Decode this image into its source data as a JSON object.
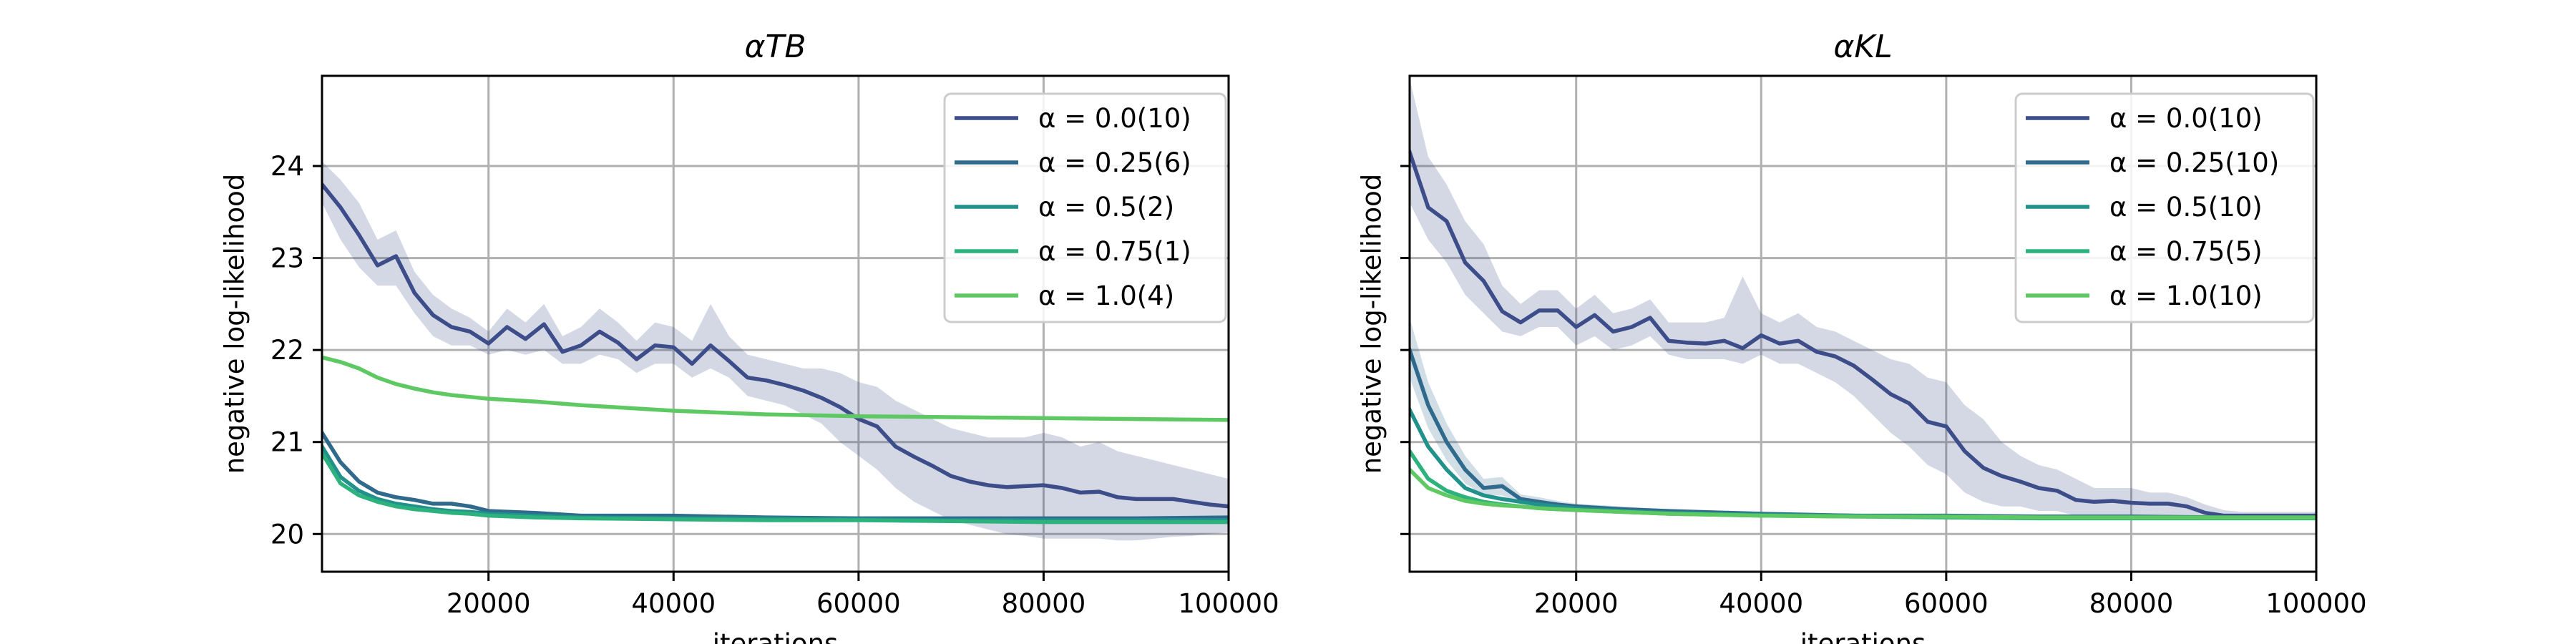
{
  "chart_data": [
    {
      "type": "line",
      "title": "αTB",
      "xlabel": "iterations",
      "ylabel": "negative log-likelihood",
      "xlim": [
        2000,
        100000
      ],
      "ylim": [
        19.59,
        24.98
      ],
      "xticks": [
        20000,
        40000,
        60000,
        80000,
        100000
      ],
      "yticks": [
        20,
        21,
        22,
        23,
        24
      ],
      "ytick_labels_visible": true,
      "grid": true,
      "legend": "upper right",
      "series": [
        {
          "name": "α = 0.0(10)",
          "color": "#3d4d8a",
          "x": [
            2000,
            4000,
            6000,
            8000,
            10000,
            12000,
            14000,
            16000,
            18000,
            20000,
            22000,
            24000,
            26000,
            28000,
            30000,
            32000,
            34000,
            36000,
            38000,
            40000,
            42000,
            44000,
            46000,
            48000,
            50000,
            52000,
            54000,
            56000,
            58000,
            60000,
            62000,
            64000,
            66000,
            68000,
            70000,
            72000,
            74000,
            76000,
            78000,
            80000,
            82000,
            84000,
            86000,
            88000,
            90000,
            92000,
            94000,
            96000,
            98000,
            100000
          ],
          "y": [
            23.8,
            23.55,
            23.25,
            22.92,
            23.02,
            22.62,
            22.38,
            22.25,
            22.2,
            22.07,
            22.25,
            22.12,
            22.28,
            21.98,
            22.05,
            22.2,
            22.08,
            21.9,
            22.05,
            22.03,
            21.85,
            22.05,
            21.88,
            21.7,
            21.67,
            21.62,
            21.56,
            21.48,
            21.38,
            21.25,
            21.17,
            20.95,
            20.84,
            20.74,
            20.63,
            20.57,
            20.53,
            20.51,
            20.52,
            20.53,
            20.5,
            20.45,
            20.46,
            20.4,
            20.38,
            20.38,
            20.38,
            20.35,
            20.32,
            20.3
          ],
          "band": {
            "lower": [
              23.6,
              23.2,
              22.9,
              22.7,
              22.7,
              22.4,
              22.15,
              22.05,
              22.05,
              21.95,
              22.0,
              21.95,
              22.0,
              21.85,
              21.85,
              21.95,
              21.9,
              21.75,
              21.85,
              21.85,
              21.7,
              21.8,
              21.7,
              21.5,
              21.45,
              21.4,
              21.3,
              21.2,
              21.0,
              20.85,
              20.7,
              20.5,
              20.35,
              20.25,
              20.15,
              20.1,
              20.05,
              20.0,
              19.98,
              19.95,
              19.95,
              19.95,
              19.95,
              19.93,
              19.93,
              19.95,
              19.97,
              19.98,
              20.0,
              20.02
            ],
            "upper": [
              24.05,
              23.85,
              23.6,
              23.2,
              23.3,
              22.85,
              22.6,
              22.45,
              22.35,
              22.2,
              22.45,
              22.3,
              22.5,
              22.15,
              22.25,
              22.45,
              22.3,
              22.1,
              22.3,
              22.25,
              22.1,
              22.5,
              22.15,
              21.95,
              21.9,
              21.85,
              21.8,
              21.8,
              21.75,
              21.65,
              21.6,
              21.45,
              21.35,
              21.25,
              21.15,
              21.1,
              21.05,
              21.05,
              21.05,
              21.1,
              21.05,
              20.95,
              21.0,
              20.9,
              20.85,
              20.8,
              20.75,
              20.7,
              20.65,
              20.6
            ]
          }
        },
        {
          "name": "α = 0.25(6)",
          "color": "#2f6a8d",
          "x": [
            2000,
            4000,
            6000,
            8000,
            10000,
            12000,
            14000,
            16000,
            18000,
            20000,
            25000,
            30000,
            40000,
            50000,
            60000,
            70000,
            80000,
            90000,
            100000
          ],
          "y": [
            21.1,
            20.78,
            20.57,
            20.45,
            20.4,
            20.37,
            20.33,
            20.33,
            20.3,
            20.25,
            20.23,
            20.2,
            20.2,
            20.18,
            20.17,
            20.17,
            20.17,
            20.17,
            20.18
          ]
        },
        {
          "name": "α = 0.5(2)",
          "color": "#21918c",
          "x": [
            2000,
            4000,
            6000,
            8000,
            10000,
            12000,
            14000,
            16000,
            18000,
            20000,
            25000,
            30000,
            40000,
            50000,
            60000,
            70000,
            80000,
            90000,
            100000
          ],
          "y": [
            20.95,
            20.62,
            20.47,
            20.38,
            20.33,
            20.3,
            20.27,
            20.25,
            20.24,
            20.22,
            20.2,
            20.18,
            20.17,
            20.17,
            20.16,
            20.15,
            20.15,
            20.15,
            20.15
          ]
        },
        {
          "name": "α = 0.75(1)",
          "color": "#2db27d",
          "x": [
            2000,
            4000,
            6000,
            8000,
            10000,
            12000,
            14000,
            16000,
            18000,
            20000,
            25000,
            30000,
            40000,
            50000,
            60000,
            70000,
            80000,
            90000,
            100000
          ],
          "y": [
            20.88,
            20.55,
            20.42,
            20.35,
            20.3,
            20.27,
            20.25,
            20.23,
            20.22,
            20.2,
            20.18,
            20.17,
            20.16,
            20.15,
            20.15,
            20.14,
            20.13,
            20.13,
            20.13
          ]
        },
        {
          "name": "α = 1.0(4)",
          "color": "#5ec962",
          "x": [
            2000,
            4000,
            6000,
            8000,
            10000,
            12000,
            14000,
            16000,
            18000,
            20000,
            25000,
            30000,
            35000,
            40000,
            45000,
            50000,
            55000,
            60000,
            70000,
            80000,
            90000,
            100000
          ],
          "y": [
            21.92,
            21.87,
            21.8,
            21.7,
            21.63,
            21.58,
            21.54,
            21.51,
            21.49,
            21.47,
            21.44,
            21.4,
            21.37,
            21.34,
            21.32,
            21.3,
            21.29,
            21.28,
            21.27,
            21.26,
            21.25,
            21.24
          ]
        }
      ]
    },
    {
      "type": "line",
      "title": "αKL",
      "xlabel": "iterations",
      "ylabel": "negative log-likelihood",
      "xlim": [
        2000,
        100000
      ],
      "ylim": [
        19.59,
        24.98
      ],
      "xticks": [
        20000,
        40000,
        60000,
        80000,
        100000
      ],
      "yticks": [
        20,
        21,
        22,
        23,
        24
      ],
      "ytick_labels_visible": false,
      "grid": true,
      "legend": "upper right",
      "series": [
        {
          "name": "α = 0.0(10)",
          "color": "#3d4d8a",
          "x": [
            2000,
            4000,
            6000,
            8000,
            10000,
            12000,
            14000,
            16000,
            18000,
            20000,
            22000,
            24000,
            26000,
            28000,
            30000,
            32000,
            34000,
            36000,
            38000,
            40000,
            42000,
            44000,
            46000,
            48000,
            50000,
            52000,
            54000,
            56000,
            58000,
            60000,
            62000,
            64000,
            66000,
            68000,
            70000,
            72000,
            74000,
            76000,
            78000,
            80000,
            82000,
            84000,
            86000,
            88000,
            90000,
            92000,
            94000,
            96000,
            98000,
            100000
          ],
          "y": [
            24.15,
            23.55,
            23.4,
            22.95,
            22.75,
            22.42,
            22.3,
            22.43,
            22.43,
            22.25,
            22.38,
            22.2,
            22.25,
            22.35,
            22.1,
            22.08,
            22.07,
            22.1,
            22.02,
            22.16,
            22.07,
            22.1,
            21.98,
            21.93,
            21.83,
            21.68,
            21.52,
            21.42,
            21.22,
            21.17,
            20.9,
            20.72,
            20.63,
            20.57,
            20.5,
            20.47,
            20.37,
            20.35,
            20.36,
            20.34,
            20.33,
            20.33,
            20.3,
            20.23,
            20.2,
            20.2,
            20.2,
            20.2,
            20.2,
            20.2
          ],
          "band": {
            "lower": [
              23.6,
              23.2,
              22.95,
              22.6,
              22.4,
              22.2,
              22.15,
              22.25,
              22.25,
              22.05,
              22.15,
              22.0,
              22.05,
              22.15,
              21.95,
              21.9,
              21.9,
              21.9,
              21.85,
              21.95,
              21.85,
              21.85,
              21.75,
              21.65,
              21.5,
              21.3,
              21.1,
              20.95,
              20.75,
              20.65,
              20.45,
              20.35,
              20.3,
              20.3,
              20.25,
              20.25,
              20.2,
              20.2,
              20.2,
              20.2,
              20.2,
              20.2,
              20.18,
              20.15,
              20.15,
              20.15,
              20.15,
              20.15,
              20.15,
              20.15
            ],
            "upper": [
              24.95,
              24.1,
              23.8,
              23.4,
              23.15,
              22.7,
              22.5,
              22.65,
              22.65,
              22.45,
              22.6,
              22.4,
              22.45,
              22.55,
              22.3,
              22.3,
              22.3,
              22.35,
              22.8,
              22.4,
              22.3,
              22.4,
              22.25,
              22.2,
              22.1,
              22.0,
              21.9,
              21.85,
              21.7,
              21.65,
              21.4,
              21.25,
              21.0,
              20.85,
              20.75,
              20.7,
              20.6,
              20.5,
              20.5,
              20.5,
              20.45,
              20.45,
              20.4,
              20.32,
              20.26,
              20.24,
              20.24,
              20.24,
              20.24,
              20.24
            ]
          }
        },
        {
          "name": "α = 0.25(10)",
          "color": "#2f6a8d",
          "x": [
            2000,
            4000,
            6000,
            8000,
            10000,
            12000,
            14000,
            16000,
            18000,
            20000,
            25000,
            30000,
            40000,
            50000,
            60000,
            70000,
            80000,
            90000,
            100000
          ],
          "y": [
            22.0,
            21.4,
            21.0,
            20.7,
            20.5,
            20.52,
            20.38,
            20.35,
            20.32,
            20.3,
            20.27,
            20.25,
            20.22,
            20.2,
            20.2,
            20.19,
            20.19,
            20.18,
            20.18
          ],
          "band": {
            "lower": [
              21.7,
              21.15,
              20.8,
              20.55,
              20.42,
              20.42,
              20.33,
              20.3,
              20.29,
              20.27,
              20.25,
              20.23,
              20.2,
              20.19,
              20.18,
              20.18,
              20.17,
              20.17,
              20.17
            ],
            "upper": [
              22.35,
              21.65,
              21.2,
              20.85,
              20.6,
              20.62,
              20.43,
              20.4,
              20.36,
              20.33,
              20.3,
              20.27,
              20.24,
              20.22,
              20.22,
              20.21,
              20.21,
              20.2,
              20.2
            ]
          }
        },
        {
          "name": "α = 0.5(10)",
          "color": "#21918c",
          "x": [
            2000,
            4000,
            6000,
            8000,
            10000,
            12000,
            14000,
            16000,
            18000,
            20000,
            25000,
            30000,
            40000,
            50000,
            60000,
            70000,
            80000,
            90000,
            100000
          ],
          "y": [
            21.35,
            20.95,
            20.7,
            20.5,
            20.42,
            20.38,
            20.35,
            20.32,
            20.3,
            20.28,
            20.25,
            20.23,
            20.21,
            20.2,
            20.19,
            20.18,
            20.18,
            20.18,
            20.18
          ]
        },
        {
          "name": "α = 0.75(5)",
          "color": "#2db27d",
          "x": [
            2000,
            4000,
            6000,
            8000,
            10000,
            12000,
            14000,
            16000,
            18000,
            20000,
            25000,
            30000,
            40000,
            50000,
            60000,
            70000,
            80000,
            90000,
            100000
          ],
          "y": [
            20.9,
            20.6,
            20.47,
            20.4,
            20.35,
            20.32,
            20.3,
            20.28,
            20.27,
            20.26,
            20.24,
            20.22,
            20.2,
            20.19,
            20.18,
            20.17,
            20.17,
            20.17,
            20.17
          ]
        },
        {
          "name": "α = 1.0(10)",
          "color": "#5ec962",
          "x": [
            2000,
            4000,
            6000,
            8000,
            10000,
            12000,
            14000,
            16000,
            18000,
            20000,
            25000,
            30000,
            40000,
            50000,
            60000,
            70000,
            80000,
            90000,
            100000
          ],
          "y": [
            20.7,
            20.5,
            20.42,
            20.36,
            20.33,
            20.31,
            20.3,
            20.28,
            20.27,
            20.26,
            20.24,
            20.22,
            20.2,
            20.19,
            20.19,
            20.18,
            20.18,
            20.18,
            20.18
          ]
        }
      ]
    }
  ]
}
